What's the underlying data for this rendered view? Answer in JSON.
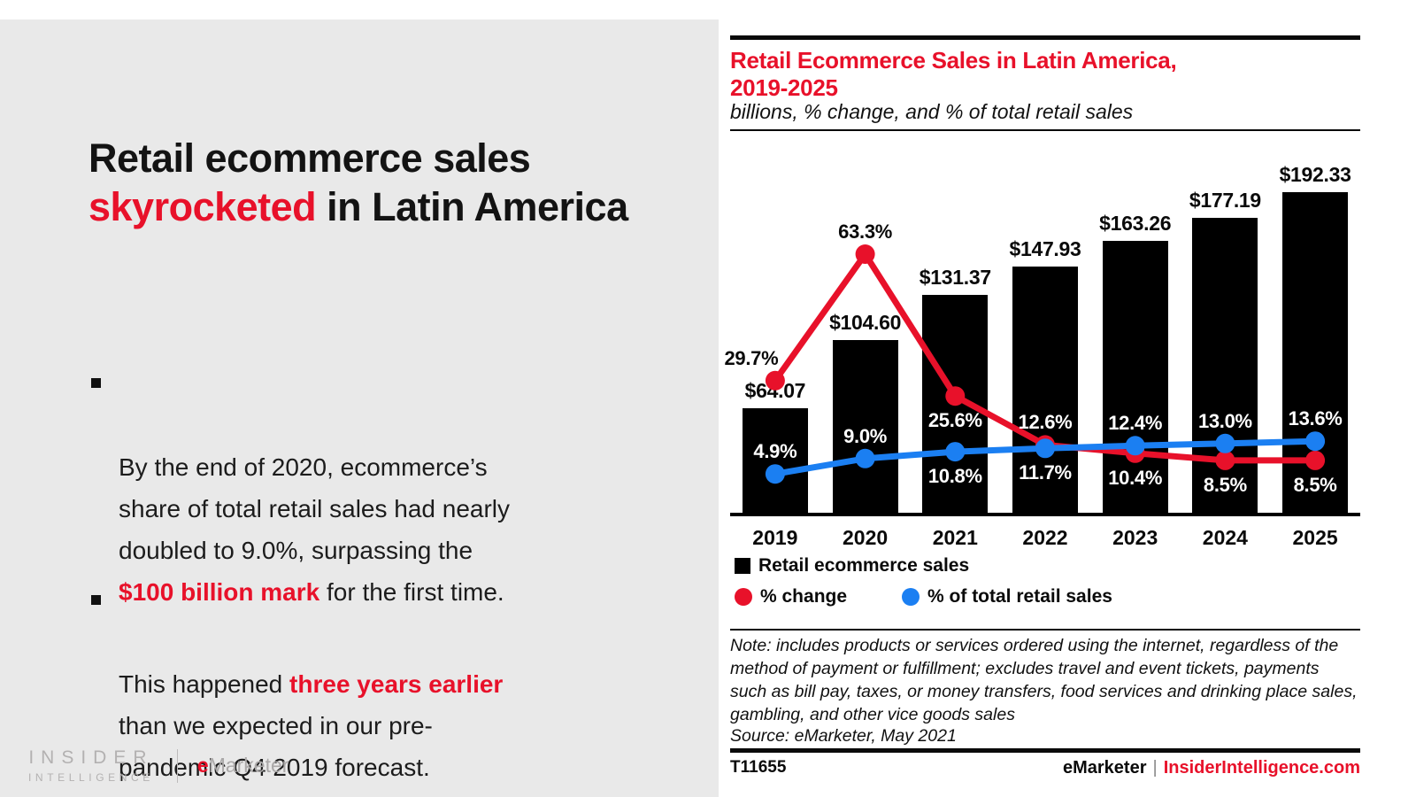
{
  "colors": {
    "accent_red": "#e8112a",
    "line_blue": "#1b7ff2",
    "bar_black": "#000000",
    "panel_gray": "#e9e9e9"
  },
  "slide": {
    "title": {
      "pre": "Retail ecommerce sales\n",
      "highlight": "skyrocketed",
      "post": " in Latin America"
    },
    "bullets": [
      {
        "pre": "By the end of 2020, ecommerce’s\nshare of total retail sales had nearly\ndoubled to 9.0%, surpassing the\n",
        "highlight": "$100 billion mark",
        "post": " for the first time."
      },
      {
        "pre": "This happened ",
        "highlight": "three years earlier",
        "post": "\nthan we expected in our pre-\npandemic Q4 2019 forecast."
      }
    ],
    "logos": {
      "insider_line1": "INSIDER",
      "insider_line2": "INTELLIGENCE",
      "emarketer_e": "e",
      "emarketer_rest": "Marketer"
    }
  },
  "chart": {
    "title": "Retail Ecommerce Sales in Latin America,\n2019-2025",
    "subtitle": "billions, % change, and % of total retail sales",
    "legend": {
      "bars": "Retail ecommerce sales",
      "change": "% change",
      "share": "% of total retail sales"
    },
    "note": "Note: includes products or services ordered using the internet, regardless of the\nmethod of payment or fulfillment; excludes travel and event tickets, payments\nsuch as bill pay, taxes, or money transfers, food services and drinking place sales,\ngambling, and other vice goods sales",
    "source": "Source: eMarketer, May 2021",
    "footer_left": "T11655",
    "footer_brand": "eMarketer",
    "footer_sep": "|",
    "footer_site": "InsiderIntelligence.com"
  },
  "chart_data": {
    "type": "bar",
    "title": "Retail Ecommerce Sales in Latin America, 2019-2025",
    "subtitle": "billions, % change, and % of total retail sales",
    "categories": [
      "2019",
      "2020",
      "2021",
      "2022",
      "2023",
      "2024",
      "2025"
    ],
    "series": [
      {
        "name": "Retail ecommerce sales",
        "type": "bar",
        "unit": "billions USD",
        "color": "#000000",
        "values": [
          64.07,
          104.6,
          131.37,
          147.93,
          163.26,
          177.19,
          192.33
        ],
        "labels": [
          "$64.07",
          "$104.60",
          "$131.37",
          "$147.93",
          "$163.26",
          "$177.19",
          "$192.33"
        ]
      },
      {
        "name": "% change",
        "type": "line",
        "unit": "%",
        "color": "#e8112a",
        "values": [
          29.7,
          63.3,
          25.6,
          12.6,
          10.4,
          8.5,
          8.5
        ],
        "labels": [
          "29.7%",
          "63.3%",
          "25.6%",
          "12.6%",
          "10.4%",
          "8.5%",
          "8.5%"
        ],
        "label_pos": [
          "above-left",
          "above",
          "below",
          "above",
          "below",
          "below",
          "below"
        ],
        "label_light": [
          false,
          false,
          true,
          true,
          true,
          true,
          true
        ]
      },
      {
        "name": "% of total retail sales",
        "type": "line",
        "unit": "%",
        "color": "#1b7ff2",
        "values": [
          4.9,
          9.0,
          10.8,
          11.7,
          12.4,
          13.0,
          13.6
        ],
        "labels": [
          "4.9%",
          "9.0%",
          "10.8%",
          "11.7%",
          "12.4%",
          "13.0%",
          "13.6%"
        ],
        "label_pos": [
          "above",
          "above",
          "below",
          "below",
          "above",
          "above",
          "above"
        ],
        "label_light": [
          true,
          true,
          true,
          true,
          true,
          true,
          true
        ]
      }
    ],
    "ylim": [
      0,
      223
    ],
    "grid": false,
    "legend_position": "bottom"
  }
}
